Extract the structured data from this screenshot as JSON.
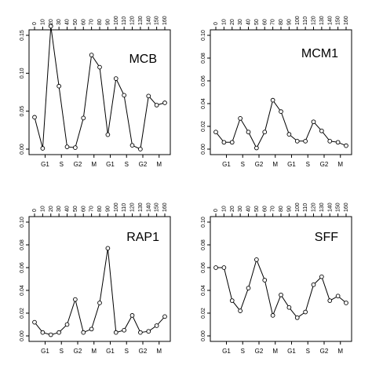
{
  "chart_data": [
    {
      "type": "line",
      "title": "MCB",
      "x": [
        0,
        10,
        20,
        30,
        40,
        50,
        60,
        70,
        80,
        90,
        100,
        110,
        120,
        130,
        140,
        150,
        160
      ],
      "values": [
        0.042,
        0.001,
        0.162,
        0.083,
        0.003,
        0.002,
        0.041,
        0.124,
        0.108,
        0.019,
        0.093,
        0.071,
        0.005,
        0.0,
        0.07,
        0.058,
        0.061
      ],
      "ylim": [
        0,
        0.15
      ],
      "yticks": [
        "0.00",
        "0.05",
        "0.10",
        "0.15"
      ],
      "xlim": [
        0,
        160
      ],
      "xticks_top": [
        "0",
        "10",
        "20",
        "30",
        "40",
        "50",
        "60",
        "70",
        "80",
        "90",
        "100",
        "110",
        "120",
        "130",
        "140",
        "150",
        "160"
      ],
      "xticks_bottom": [
        "G1",
        "S",
        "G2",
        "M",
        "G1",
        "S",
        "G2",
        "M"
      ],
      "grid": false
    },
    {
      "type": "line",
      "title": "MCM1",
      "x": [
        0,
        10,
        20,
        30,
        40,
        50,
        60,
        70,
        80,
        90,
        100,
        110,
        120,
        130,
        140,
        150,
        160
      ],
      "values": [
        0.015,
        0.006,
        0.006,
        0.027,
        0.015,
        0.001,
        0.015,
        0.043,
        0.033,
        0.013,
        0.007,
        0.007,
        0.024,
        0.016,
        0.007,
        0.006,
        0.003
      ],
      "ylim": [
        0,
        0.1
      ],
      "yticks": [
        "0.00",
        "0.02",
        "0.04",
        "0.06",
        "0.08",
        "0.10"
      ],
      "xlim": [
        0,
        160
      ],
      "xticks_top": [
        "0",
        "10",
        "20",
        "30",
        "40",
        "50",
        "60",
        "70",
        "80",
        "90",
        "100",
        "110",
        "120",
        "130",
        "140",
        "150",
        "160"
      ],
      "xticks_bottom": [
        "G1",
        "S",
        "G2",
        "M",
        "G1",
        "S",
        "G2",
        "M"
      ],
      "grid": false
    },
    {
      "type": "line",
      "title": "RAP1",
      "x": [
        0,
        10,
        20,
        30,
        40,
        50,
        60,
        70,
        80,
        90,
        100,
        110,
        120,
        130,
        140,
        150,
        160
      ],
      "values": [
        0.012,
        0.003,
        0.001,
        0.003,
        0.01,
        0.032,
        0.003,
        0.006,
        0.029,
        0.077,
        0.003,
        0.005,
        0.018,
        0.003,
        0.004,
        0.009,
        0.017
      ],
      "ylim": [
        0,
        0.1
      ],
      "yticks": [
        "0.00",
        "0.02",
        "0.04",
        "0.06",
        "0.08",
        "0.10"
      ],
      "xlim": [
        0,
        160
      ],
      "xticks_top": [
        "0",
        "10",
        "20",
        "30",
        "40",
        "50",
        "60",
        "70",
        "80",
        "90",
        "100",
        "110",
        "120",
        "130",
        "140",
        "150",
        "160"
      ],
      "xticks_bottom": [
        "G1",
        "S",
        "G2",
        "M",
        "G1",
        "S",
        "G2",
        "M"
      ],
      "grid": false
    },
    {
      "type": "line",
      "title": "SFF",
      "x": [
        0,
        10,
        20,
        30,
        40,
        50,
        60,
        70,
        80,
        90,
        100,
        110,
        120,
        130,
        140,
        150,
        160
      ],
      "values": [
        0.06,
        0.06,
        0.031,
        0.022,
        0.042,
        0.067,
        0.049,
        0.018,
        0.036,
        0.025,
        0.016,
        0.021,
        0.045,
        0.052,
        0.031,
        0.035,
        0.029
      ],
      "ylim": [
        0,
        0.1
      ],
      "yticks": [
        "0.00",
        "0.02",
        "0.04",
        "0.06",
        "0.08",
        "0.10"
      ],
      "xlim": [
        0,
        160
      ],
      "xticks_top": [
        "0",
        "10",
        "20",
        "30",
        "40",
        "50",
        "60",
        "70",
        "80",
        "90",
        "100",
        "110",
        "120",
        "130",
        "140",
        "150",
        "160"
      ],
      "xticks_bottom": [
        "G1",
        "S",
        "G2",
        "M",
        "G1",
        "S",
        "G2",
        "M"
      ],
      "grid": false
    }
  ]
}
